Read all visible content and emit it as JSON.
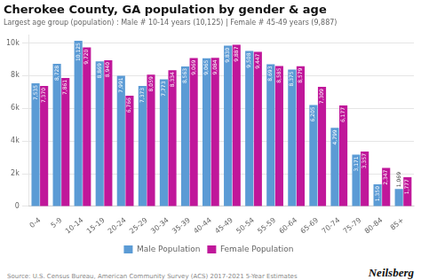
{
  "chart_data": {
    "type": "bar",
    "title": "Cherokee County, GA population by gender & age",
    "subtitle": "Largest age group (population) : Male # 10-14 years (10,125) | Female # 45-49 years (9,887)",
    "annotations": [
      "Source: U.S. Census Bureau, American Community Survey (ACS) 2017-2021 5-Year Estimates",
      "Neilsberg"
    ],
    "categories": [
      "0-4",
      "5-9",
      "10-14",
      "15-19",
      "20-24",
      "25-29",
      "30-34",
      "35-39",
      "40-44",
      "45-49",
      "50-54",
      "55-59",
      "60-64",
      "65-69",
      "70-74",
      "75-79",
      "80-84",
      "85+"
    ],
    "series": [
      {
        "name": "Male Population",
        "color": "#5b9bd5",
        "values": [
          7535,
          8728,
          10125,
          8869,
          7991,
          7373,
          7773,
          8563,
          9065,
          9830,
          9508,
          8693,
          8375,
          6205,
          4799,
          3171,
          1350,
          1069
        ],
        "value_labels": [
          "7,535",
          "8,728",
          "10,125",
          "8,869",
          "7,991",
          "7,373",
          "7,773",
          "8,563",
          "9,065",
          "9,830",
          "9,508",
          "8,693",
          "8,375",
          "6,205",
          "4,799",
          "3,171",
          "1,350",
          "1,069"
        ]
      },
      {
        "name": "Female Population",
        "color": "#c0179a",
        "values": [
          7370,
          7861,
          9720,
          8940,
          6766,
          8059,
          8334,
          9069,
          9084,
          9887,
          9447,
          8585,
          8579,
          7309,
          6177,
          3357,
          2347,
          1777
        ],
        "value_labels": [
          "7,370",
          "7,861",
          "9,720",
          "8,940",
          "6,766",
          "8,059",
          "8,334",
          "9,069",
          "9,084",
          "9,887",
          "9,447",
          "8,585",
          "8,579",
          "7,309",
          "6,177",
          "3,357",
          "2,347",
          "1,777"
        ]
      }
    ],
    "ylim": [
      0,
      10500
    ],
    "yticks": [
      0,
      {
        "value": 2000,
        "label": "2k"
      },
      {
        "value": 4000,
        "label": "4k"
      },
      {
        "value": 6000,
        "label": "6k"
      },
      {
        "value": 8000,
        "label": "8k"
      },
      {
        "value": 10000,
        "label": "10k"
      }
    ],
    "grid": true,
    "legend": "bottom",
    "data_labels": true
  }
}
